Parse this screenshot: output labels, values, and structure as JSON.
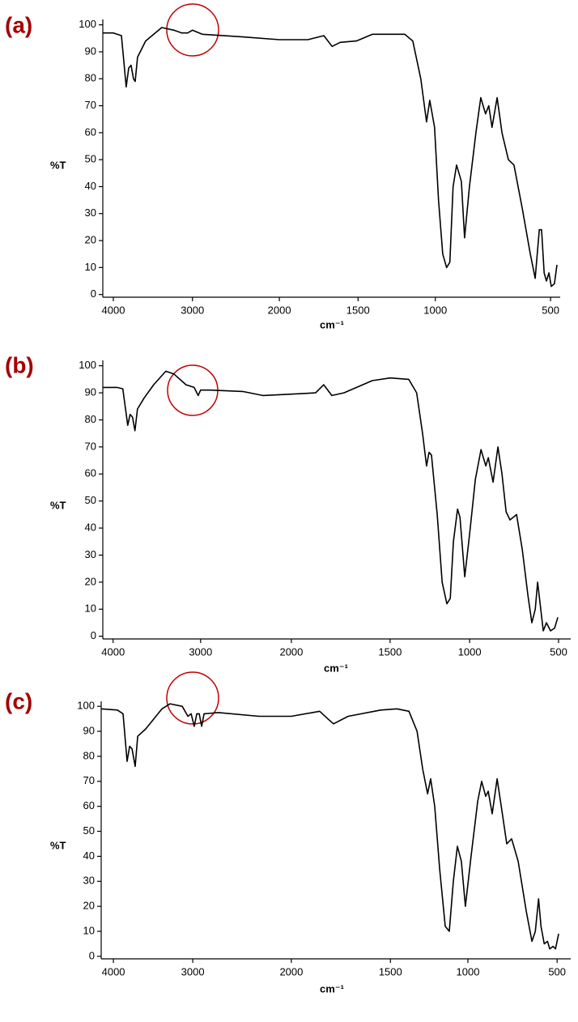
{
  "chart_data": [
    {
      "type": "line",
      "title": "(a)",
      "y_label": "%T",
      "x_label": "cm⁻¹",
      "color": "#000000",
      "xlim": [
        4133,
        458
      ],
      "ylim": [
        -1,
        102
      ],
      "xticks": [
        4000,
        3000,
        2000,
        1500,
        1000,
        500
      ],
      "yticks": [
        0,
        10,
        20,
        30,
        40,
        50,
        60,
        70,
        80,
        90,
        100
      ],
      "x": [
        4133,
        4000,
        3898,
        3837,
        3806,
        3776,
        3745,
        3724,
        3694,
        3592,
        3388,
        3235,
        3133,
        3061,
        3000,
        2888,
        2420,
        2000,
        1820,
        1717,
        1665,
        1613,
        1510,
        1406,
        1198,
        1146,
        1094,
        1057,
        1036,
        1005,
        986,
        968,
        951,
        937,
        923,
        908,
        887,
        873,
        852,
        824,
        803,
        782,
        768,
        754,
        732,
        711,
        683,
        659,
        623,
        588,
        567,
        549,
        539,
        528,
        518,
        507,
        497,
        483,
        472
      ],
      "values": [
        97,
        97,
        96,
        77,
        84,
        85,
        80,
        79,
        88,
        94,
        99,
        98,
        97,
        97,
        98,
        96.5,
        95.5,
        94.5,
        94.5,
        96,
        92,
        93.5,
        94,
        96.5,
        96.5,
        94,
        80,
        64,
        72,
        62,
        35,
        15,
        10,
        12,
        40,
        48,
        42,
        21,
        40,
        60,
        73,
        67,
        70,
        62,
        73,
        60,
        50,
        48,
        32,
        15,
        6,
        24,
        24,
        8,
        5,
        8,
        3,
        4,
        11
      ]
    },
    {
      "type": "line",
      "title": "(b)",
      "y_label": "%T",
      "x_label": "cm⁻¹",
      "color": "#000000",
      "xlim": [
        4120,
        432
      ],
      "ylim": [
        -1,
        102
      ],
      "xticks": [
        4000,
        3000,
        2000,
        1500,
        1000,
        500
      ],
      "yticks": [
        0,
        10,
        20,
        30,
        40,
        50,
        60,
        70,
        80,
        90,
        100
      ],
      "x": [
        4120,
        3954,
        3889,
        3833,
        3806,
        3778,
        3750,
        3722,
        3648,
        3537,
        3398,
        3306,
        3167,
        3074,
        3028,
        3000,
        2893,
        2536,
        2313,
        2000,
        1877,
        1836,
        1795,
        1734,
        1590,
        1500,
        1383,
        1333,
        1296,
        1271,
        1255,
        1240,
        1204,
        1173,
        1143,
        1122,
        1102,
        1076,
        1061,
        1031,
        1000,
        968,
        936,
        909,
        895,
        868,
        841,
        818,
        795,
        773,
        736,
        704,
        672,
        650,
        631,
        618,
        600,
        586,
        568,
        545,
        522,
        504
      ],
      "values": [
        92,
        92,
        91.5,
        78,
        82,
        81,
        76,
        84,
        88,
        93,
        98,
        97,
        93,
        92,
        89,
        91,
        91,
        90.5,
        89,
        89.5,
        90,
        93,
        89,
        90,
        94.5,
        95.5,
        95,
        90,
        75,
        63,
        68,
        67,
        45,
        20,
        12,
        14,
        35,
        47,
        44,
        22,
        38,
        58,
        69,
        63,
        66,
        57,
        70,
        60,
        46,
        43,
        45,
        32,
        15,
        5,
        10,
        20,
        10,
        2,
        5,
        2,
        3,
        7
      ]
    },
    {
      "type": "line",
      "title": "(c)",
      "y_label": "%T",
      "x_label": "cm⁻¹",
      "color": "#000000",
      "xlim": [
        4153,
        423
      ],
      "ylim": [
        -1,
        102
      ],
      "xticks": [
        4000,
        3000,
        2000,
        1500,
        1000,
        500
      ],
      "yticks": [
        0,
        10,
        20,
        30,
        40,
        50,
        60,
        70,
        80,
        90,
        100
      ],
      "x": [
        4153,
        3949,
        3878,
        3827,
        3796,
        3765,
        3725,
        3694,
        3592,
        3388,
        3286,
        3133,
        3061,
        3020,
        2984,
        2959,
        2934,
        2910,
        2885,
        2738,
        2328,
        2000,
        1857,
        1816,
        1787,
        1713,
        1549,
        1458,
        1380,
        1328,
        1292,
        1260,
        1240,
        1214,
        1182,
        1146,
        1120,
        1094,
        1068,
        1042,
        1016,
        982,
        945,
        923,
        900,
        886,
        864,
        836,
        809,
        782,
        755,
        718,
        673,
        641,
        622,
        604,
        590,
        572,
        554,
        541,
        523,
        509,
        491
      ],
      "values": [
        99,
        98.5,
        97,
        78,
        84,
        83,
        76,
        88,
        91,
        99,
        101,
        100,
        96,
        97,
        92,
        97,
        97,
        92,
        97,
        97.5,
        96,
        96,
        98,
        95,
        93,
        96,
        98.5,
        99,
        98,
        90,
        75,
        65,
        71,
        60,
        35,
        12,
        10,
        30,
        44,
        38,
        20,
        40,
        62,
        70,
        64,
        66,
        57,
        71,
        58,
        45,
        47,
        38,
        18,
        6,
        10,
        23,
        12,
        5,
        6,
        3,
        4,
        3,
        9
      ]
    }
  ]
}
